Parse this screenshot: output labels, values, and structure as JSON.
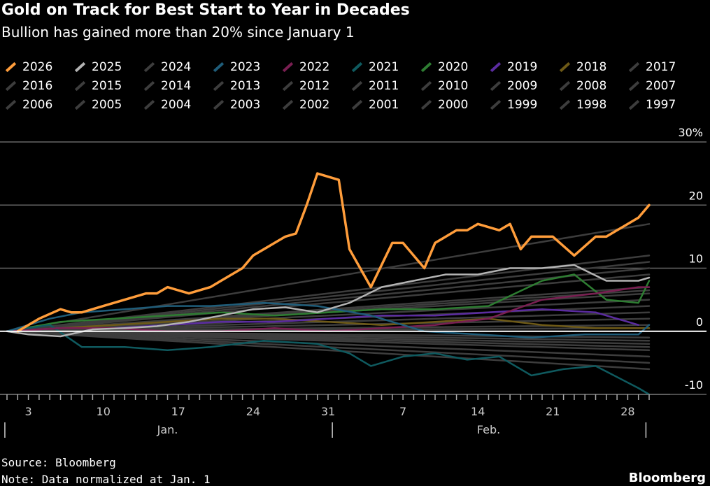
{
  "title": "Gold on Track for Best Start to Year in Decades",
  "subtitle": "Bullion has gained more than 20% since January 1",
  "source": "Source: Bloomberg",
  "note": "Note: Data normalized at Jan. 1",
  "brand": "Bloomberg",
  "chart_data": {
    "type": "line",
    "title": "Gold on Track for Best Start to Year in Decades",
    "subtitle": "Bullion has gained more than 20% since January 1",
    "ylim": [
      -10,
      30
    ],
    "y_ticks": [
      {
        "value": 30,
        "label": "30%"
      },
      {
        "value": 20,
        "label": "20"
      },
      {
        "value": 10,
        "label": "10"
      },
      {
        "value": 0,
        "label": "0"
      },
      {
        "value": -10,
        "label": "-10"
      }
    ],
    "x_ticks": [
      "3",
      "10",
      "17",
      "24",
      "31",
      "7",
      "14",
      "21",
      "28"
    ],
    "x_tick_days": [
      3,
      10,
      17,
      24,
      31,
      38,
      45,
      52,
      59
    ],
    "x_months": [
      {
        "label": "Jan.",
        "start_day": 1,
        "end_day": 31
      },
      {
        "label": "Feb.",
        "start_day": 32,
        "end_day": 60
      }
    ],
    "xlim_days": [
      1,
      64
    ],
    "grid": "horizontal",
    "legend_position": "top",
    "series": [
      {
        "name": "2026",
        "color": "#ff9d3b",
        "width": 3.5,
        "x": [
          2,
          4,
          6,
          7,
          8,
          10,
          12,
          14,
          15,
          16,
          18,
          20,
          21,
          23,
          24,
          26,
          27,
          28,
          29,
          30,
          32,
          33,
          34,
          35,
          37,
          38,
          40,
          41,
          42,
          43,
          44,
          45,
          47,
          48,
          49,
          50,
          52,
          54,
          56,
          57,
          58,
          60,
          61
        ],
        "y": [
          0,
          2,
          3.5,
          3,
          3,
          4,
          5,
          6,
          6,
          7,
          6,
          7,
          8,
          10,
          12,
          14,
          15,
          15.5,
          20,
          25,
          24,
          13,
          10,
          7,
          14,
          14,
          10,
          14,
          15,
          16,
          16,
          17,
          16,
          17,
          13,
          15,
          15,
          12,
          15,
          15,
          16,
          18,
          20
        ]
      },
      {
        "name": "2025",
        "color": "#b4b4b4",
        "width": 2.5,
        "x": [
          1,
          3,
          6,
          9,
          12,
          15,
          18,
          21,
          24,
          27,
          30,
          33,
          36,
          39,
          42,
          45,
          48,
          51,
          54,
          57,
          60,
          61
        ],
        "y": [
          0,
          -0.5,
          -0.8,
          0.3,
          0.5,
          0.8,
          1.5,
          2.5,
          3.5,
          3.8,
          3,
          4.5,
          7,
          8,
          9,
          9,
          10,
          10,
          10.5,
          8,
          8,
          8.5
        ]
      },
      {
        "name": "2024",
        "color": "#3d3d3d",
        "width": 2.5,
        "x": [
          1,
          61
        ],
        "y": [
          0,
          -2
        ]
      },
      {
        "name": "2023",
        "color": "#1f5d7a",
        "width": 2.5,
        "x": [
          1,
          5,
          8,
          12,
          16,
          20,
          25,
          30,
          35,
          40,
          45,
          50,
          55,
          60,
          61
        ],
        "y": [
          0,
          2,
          3,
          3.5,
          4,
          4,
          4.5,
          4,
          2.5,
          0,
          -0.5,
          -1,
          -0.5,
          -0.5,
          1
        ]
      },
      {
        "name": "2022",
        "color": "#7a1f52",
        "width": 2.5,
        "x": [
          1,
          6,
          11,
          16,
          21,
          26,
          31,
          36,
          41,
          46,
          51,
          56,
          60,
          61
        ],
        "y": [
          0,
          0.5,
          0.5,
          0,
          0,
          0.5,
          0,
          0.5,
          1,
          2,
          5,
          6,
          7,
          7
        ]
      },
      {
        "name": "2021",
        "color": "#0f5a5f",
        "width": 2.5,
        "x": [
          1,
          5,
          8,
          12,
          16,
          20,
          25,
          30,
          33,
          35,
          38,
          41,
          44,
          47,
          50,
          53,
          56,
          60,
          61
        ],
        "y": [
          0,
          1,
          -2.5,
          -2.5,
          -3,
          -2.5,
          -1.5,
          -2,
          -3.5,
          -5.5,
          -4,
          -3.5,
          -4.5,
          -4,
          -7,
          -6,
          -5.5,
          -9,
          -10
        ]
      },
      {
        "name": "2020",
        "color": "#2e7d32",
        "width": 2.5,
        "x": [
          1,
          6,
          11,
          16,
          21,
          26,
          31,
          36,
          41,
          46,
          51,
          54,
          57,
          60,
          61
        ],
        "y": [
          0,
          1.5,
          2,
          2.5,
          3,
          2.5,
          3,
          3.5,
          3.5,
          4,
          8,
          9,
          5,
          4.5,
          8
        ]
      },
      {
        "name": "2019",
        "color": "#5b2ca0",
        "width": 2.5,
        "x": [
          1,
          6,
          11,
          16,
          21,
          26,
          31,
          36,
          41,
          46,
          51,
          56,
          60
        ],
        "y": [
          0,
          0.5,
          0.5,
          1,
          1.5,
          1.5,
          2,
          2.5,
          2.5,
          3,
          3.5,
          3,
          1
        ]
      },
      {
        "name": "2018",
        "color": "#6e5a17",
        "width": 2.5,
        "x": [
          1,
          6,
          11,
          16,
          21,
          26,
          31,
          36,
          41,
          46,
          51,
          56,
          61
        ],
        "y": [
          0,
          0.5,
          1,
          1.5,
          2,
          2,
          1.5,
          1,
          1.5,
          2,
          1,
          0.5,
          0.5
        ]
      },
      {
        "name": "2017",
        "color": "#3d3d3d",
        "width": 2.5,
        "x": [
          1,
          61
        ],
        "y": [
          0,
          5
        ]
      },
      {
        "name": "2016",
        "color": "#3d3d3d",
        "width": 2.5,
        "x": [
          1,
          61
        ],
        "y": [
          0,
          17
        ]
      },
      {
        "name": "2015",
        "color": "#3d3d3d",
        "width": 2.5,
        "x": [
          1,
          61
        ],
        "y": [
          0,
          3
        ]
      },
      {
        "name": "2014",
        "color": "#3d3d3d",
        "width": 2.5,
        "x": [
          1,
          61
        ],
        "y": [
          0,
          9
        ]
      },
      {
        "name": "2013",
        "color": "#3d3d3d",
        "width": 2.5,
        "x": [
          1,
          61
        ],
        "y": [
          0,
          -6
        ]
      },
      {
        "name": "2012",
        "color": "#3d3d3d",
        "width": 2.5,
        "x": [
          1,
          61
        ],
        "y": [
          0,
          12
        ]
      },
      {
        "name": "2011",
        "color": "#3d3d3d",
        "width": 2.5,
        "x": [
          1,
          61
        ],
        "y": [
          0,
          1
        ]
      },
      {
        "name": "2010",
        "color": "#3d3d3d",
        "width": 2.5,
        "x": [
          1,
          61
        ],
        "y": [
          0,
          -1
        ]
      },
      {
        "name": "2009",
        "color": "#3d3d3d",
        "width": 2.5,
        "x": [
          1,
          61
        ],
        "y": [
          0,
          6
        ]
      },
      {
        "name": "2008",
        "color": "#3d3d3d",
        "width": 2.5,
        "x": [
          1,
          61
        ],
        "y": [
          0,
          10
        ]
      },
      {
        "name": "2007",
        "color": "#3d3d3d",
        "width": 2.5,
        "x": [
          1,
          61
        ],
        "y": [
          0,
          4
        ]
      },
      {
        "name": "2006",
        "color": "#3d3d3d",
        "width": 2.5,
        "x": [
          1,
          61
        ],
        "y": [
          0,
          7
        ]
      },
      {
        "name": "2005",
        "color": "#3d3d3d",
        "width": 2.5,
        "x": [
          1,
          61
        ],
        "y": [
          0,
          -3
        ]
      },
      {
        "name": "2004",
        "color": "#3d3d3d",
        "width": 2.5,
        "x": [
          1,
          61
        ],
        "y": [
          0,
          2
        ]
      },
      {
        "name": "2003",
        "color": "#3d3d3d",
        "width": 2.5,
        "x": [
          1,
          61
        ],
        "y": [
          0,
          -4
        ]
      },
      {
        "name": "2002",
        "color": "#3d3d3d",
        "width": 2.5,
        "x": [
          1,
          61
        ],
        "y": [
          0,
          6.5
        ]
      },
      {
        "name": "2001",
        "color": "#3d3d3d",
        "width": 2.5,
        "x": [
          1,
          61
        ],
        "y": [
          0,
          -2.5
        ]
      },
      {
        "name": "2000",
        "color": "#3d3d3d",
        "width": 2.5,
        "x": [
          1,
          61
        ],
        "y": [
          0,
          11
        ]
      },
      {
        "name": "1999",
        "color": "#3d3d3d",
        "width": 2.5,
        "x": [
          1,
          61
        ],
        "y": [
          0,
          -1.5
        ]
      },
      {
        "name": "1998",
        "color": "#3d3d3d",
        "width": 2.5,
        "x": [
          1,
          61
        ],
        "y": [
          0,
          0.5
        ]
      },
      {
        "name": "1997",
        "color": "#3d3d3d",
        "width": 2.5,
        "x": [
          1,
          61
        ],
        "y": [
          0,
          -5
        ]
      }
    ]
  }
}
